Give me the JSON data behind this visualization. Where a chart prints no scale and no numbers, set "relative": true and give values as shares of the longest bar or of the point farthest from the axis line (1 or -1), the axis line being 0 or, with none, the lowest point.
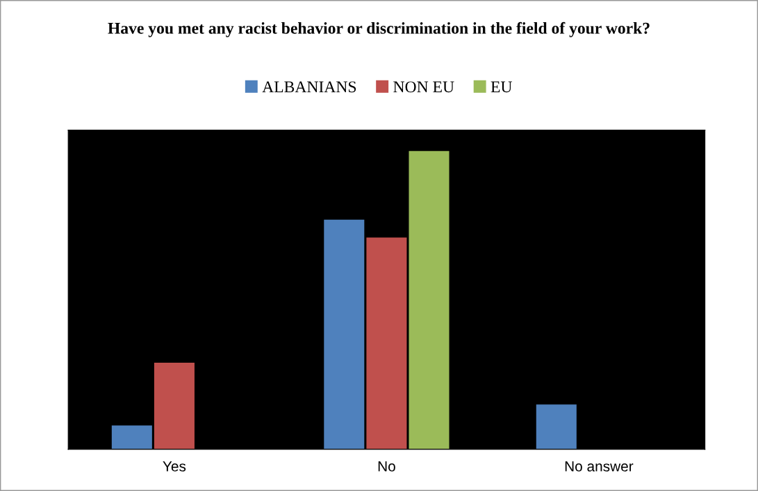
{
  "chart_data": {
    "type": "bar",
    "title": "Have you met any racist behavior or discrimination in the field of your work?",
    "categories": [
      "Yes",
      "No",
      "No answer"
    ],
    "relative": true,
    "legend": "top",
    "grid": false,
    "series": [
      {
        "name": "ALBANIANS",
        "color": "#4f81bd",
        "values": [
          0.08,
          0.77,
          0.15
        ]
      },
      {
        "name": "NON EU",
        "color": "#c0504d",
        "values": [
          0.29,
          0.71,
          0
        ]
      },
      {
        "name": "EU",
        "color": "#9bbb59",
        "values": [
          0,
          1,
          0
        ]
      }
    ]
  }
}
